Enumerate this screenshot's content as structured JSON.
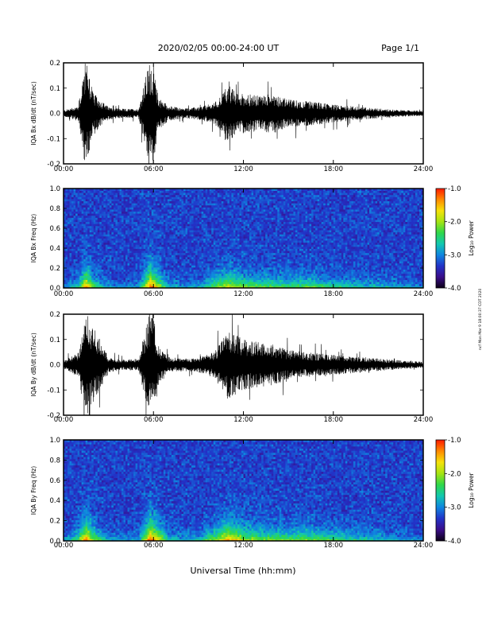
{
  "header": {
    "title": "2020/02/05  00:00-24:00 UT",
    "page": "Page 1/1"
  },
  "xlabel": "Universal Time (hh:mm)",
  "side_stamp": "ncf Mon Mar 9 18:00:37 CDT 2020",
  "colors": {
    "trace": "#000000",
    "spectrogram_background": "#2b0f78",
    "spectrogram_colormap": [
      "#0b0016",
      "#3a0d8a",
      "#2233c8",
      "#0f86e0",
      "#12c8b0",
      "#2fd84a",
      "#a6e412",
      "#f6e20a",
      "#ff8a00",
      "#ff1a00"
    ]
  },
  "chart_data": [
    {
      "type": "line",
      "title": "",
      "xlabel": "",
      "ylabel": "IQA Bx dB/dt (nT/sec)",
      "xlim": [
        0,
        24
      ],
      "ylim": [
        -0.2,
        0.2
      ],
      "x_ticks": [
        "00:00",
        "06:00",
        "12:00",
        "18:00",
        "24:00"
      ],
      "y_ticks": [
        "0.2",
        "0.1",
        "0.0",
        "-0.1",
        "-0.2"
      ],
      "series": [
        {
          "x": [
            0,
            1,
            1.4,
            1.6,
            2,
            3,
            4,
            5,
            5.7,
            6,
            6.3,
            7,
            8,
            9,
            10,
            10.5,
            11,
            11.5,
            12,
            13,
            14,
            15,
            16,
            17,
            18,
            19,
            20,
            21,
            22,
            23,
            24
          ],
          "envelope": [
            0.012,
            0.03,
            0.2,
            0.2,
            0.08,
            0.025,
            0.018,
            0.018,
            0.2,
            0.2,
            0.07,
            0.03,
            0.02,
            0.025,
            0.04,
            0.07,
            0.12,
            0.08,
            0.08,
            0.07,
            0.08,
            0.055,
            0.05,
            0.045,
            0.035,
            0.03,
            0.025,
            0.02,
            0.015,
            0.012,
            0.01
          ]
        }
      ]
    },
    {
      "type": "heatmap",
      "title": "",
      "xlabel": "",
      "ylabel": "IQA Bx Freq (Hz)",
      "xlim": [
        0,
        24
      ],
      "ylim": [
        0,
        1.0
      ],
      "x_ticks": [
        "00:00",
        "06:00",
        "12:00",
        "18:00",
        "24:00"
      ],
      "y_ticks": [
        "1.0",
        "0.8",
        "0.6",
        "0.4",
        "0.2",
        "0.0"
      ],
      "colorbar": {
        "label": "Log₁₀ Power",
        "range": [
          -4.0,
          -1.0
        ],
        "ticks": [
          "-1.0",
          "-2.0",
          "-3.0",
          "-4.0"
        ]
      },
      "activity": {
        "x": [
          0,
          1,
          1.5,
          2,
          3,
          4,
          5,
          5.8,
          6.1,
          7,
          8,
          9,
          10,
          11,
          12,
          13,
          14,
          15,
          16,
          17,
          18,
          19,
          20,
          21,
          22,
          23,
          24
        ],
        "level": [
          0.1,
          0.4,
          0.9,
          0.5,
          0.2,
          0.15,
          0.2,
          1.0,
          0.8,
          0.3,
          0.2,
          0.25,
          0.5,
          0.7,
          0.55,
          0.5,
          0.5,
          0.45,
          0.5,
          0.45,
          0.4,
          0.35,
          0.3,
          0.3,
          0.25,
          0.2,
          0.15
        ]
      }
    },
    {
      "type": "line",
      "title": "",
      "xlabel": "",
      "ylabel": "IQA By dB/dt (nT/sec)",
      "xlim": [
        0,
        24
      ],
      "ylim": [
        -0.2,
        0.2
      ],
      "x_ticks": [
        "00:00",
        "06:00",
        "12:00",
        "18:00",
        "24:00"
      ],
      "y_ticks": [
        "0.2",
        "0.1",
        "0.0",
        "-0.1",
        "-0.2"
      ],
      "series": [
        {
          "x": [
            0,
            1,
            1.4,
            1.6,
            2,
            3,
            4,
            5,
            5.7,
            6,
            6.3,
            7,
            8,
            9,
            10,
            10.5,
            11,
            11.5,
            12,
            13,
            14,
            15,
            16,
            17,
            18,
            19,
            20,
            21,
            22,
            23,
            24
          ],
          "envelope": [
            0.015,
            0.05,
            0.2,
            0.2,
            0.15,
            0.03,
            0.02,
            0.025,
            0.2,
            0.2,
            0.08,
            0.03,
            0.025,
            0.03,
            0.05,
            0.09,
            0.14,
            0.12,
            0.1,
            0.09,
            0.08,
            0.06,
            0.05,
            0.045,
            0.04,
            0.035,
            0.03,
            0.025,
            0.02,
            0.015,
            0.012
          ]
        }
      ]
    },
    {
      "type": "heatmap",
      "title": "",
      "xlabel": "",
      "ylabel": "IQA By Freq (Hz)",
      "xlim": [
        0,
        24
      ],
      "ylim": [
        0,
        1.0
      ],
      "x_ticks": [
        "00:00",
        "06:00",
        "12:00",
        "18:00",
        "24:00"
      ],
      "y_ticks": [
        "1.0",
        "0.8",
        "0.6",
        "0.4",
        "0.2",
        "0.0"
      ],
      "colorbar": {
        "label": "Log₁₀ Power",
        "range": [
          -4.0,
          -1.0
        ],
        "ticks": [
          "-1.0",
          "-2.0",
          "-3.0",
          "-4.0"
        ]
      },
      "activity": {
        "x": [
          0,
          1,
          1.5,
          2,
          3,
          4,
          5,
          5.8,
          6.1,
          7,
          8,
          9,
          10,
          11,
          12,
          13,
          14,
          15,
          16,
          17,
          18,
          19,
          20,
          21,
          22,
          23,
          24
        ],
        "level": [
          0.15,
          0.5,
          0.95,
          0.6,
          0.25,
          0.2,
          0.25,
          1.0,
          0.85,
          0.35,
          0.25,
          0.3,
          0.55,
          0.85,
          0.65,
          0.55,
          0.55,
          0.5,
          0.55,
          0.5,
          0.45,
          0.4,
          0.35,
          0.3,
          0.25,
          0.2,
          0.15
        ]
      }
    }
  ]
}
